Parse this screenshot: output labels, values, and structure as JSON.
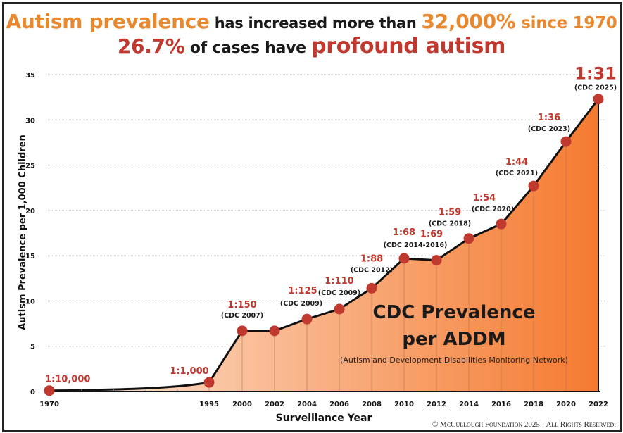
{
  "headline": {
    "line1": {
      "part1": "Autism prevalence",
      "part2": " has increased more than ",
      "part3": "32,000%",
      "part4": " since 1970"
    },
    "line2": {
      "part1": "26.7%",
      "part2": " of cases have ",
      "part3": "profound autism"
    }
  },
  "colors": {
    "orange_accent": "#e8892f",
    "red_accent": "#c0392f",
    "point": "#c0392f",
    "fill_start": "#fde6d6",
    "fill_end": "#f57a30"
  },
  "copyright": "© McCullough Foundation 2025 - All Rights Reserved.",
  "chart_data": {
    "type": "area",
    "title": "Autism prevalence has increased more than 32,000% since 1970 — 26.7% of cases have profound autism",
    "xlabel": "Surveillance Year",
    "ylabel": "Autism Prevalence per 1,000 Children",
    "ylim": [
      0,
      35
    ],
    "yticks": [
      0,
      5,
      10,
      15,
      20,
      25,
      30,
      35
    ],
    "xticks": [
      "1970",
      "1995",
      "2000",
      "2002",
      "2004",
      "2006",
      "2008",
      "2010",
      "2012",
      "2014",
      "2016",
      "2018",
      "2020",
      "2022"
    ],
    "grid": "horizontal-dotted",
    "annotation": {
      "title_line1": "CDC Prevalence",
      "title_line2": "per ADDM",
      "subtitle": "(Autism and Development Disabilities Monitoring Network)"
    },
    "points": [
      {
        "x": "1970",
        "y": 0.1,
        "ratio": "1:10,000",
        "source": ""
      },
      {
        "x": "1995",
        "y": 1.0,
        "ratio": "1:1,000",
        "source": ""
      },
      {
        "x": "2000",
        "y": 6.7,
        "ratio": "1:150",
        "source": "(CDC 2007)"
      },
      {
        "x": "2002",
        "y": 6.7,
        "ratio": "",
        "source": ""
      },
      {
        "x": "2004",
        "y": 8.0,
        "ratio": "1:125",
        "source": "(CDC 2009)"
      },
      {
        "x": "2006",
        "y": 9.1,
        "ratio": "1:110",
        "source": "(CDC 2009)"
      },
      {
        "x": "2008",
        "y": 11.4,
        "ratio": "1:88",
        "source": "(CDC 2012)"
      },
      {
        "x": "2010",
        "y": 14.7,
        "ratio": "1:68",
        "source": "(CDC 2014-2016)"
      },
      {
        "x": "2012",
        "y": 14.5,
        "ratio": "1:69",
        "source": ""
      },
      {
        "x": "2014",
        "y": 16.9,
        "ratio": "1:59",
        "source": "(CDC 2018)"
      },
      {
        "x": "2016",
        "y": 18.5,
        "ratio": "1:54",
        "source": "(CDC 2020)"
      },
      {
        "x": "2018",
        "y": 22.7,
        "ratio": "1:44",
        "source": "(CDC 2021)"
      },
      {
        "x": "2020",
        "y": 27.6,
        "ratio": "1:36",
        "source": "(CDC 2023)"
      },
      {
        "x": "2022",
        "y": 32.3,
        "ratio": "1:31",
        "source": "(CDC 2025)"
      }
    ]
  }
}
